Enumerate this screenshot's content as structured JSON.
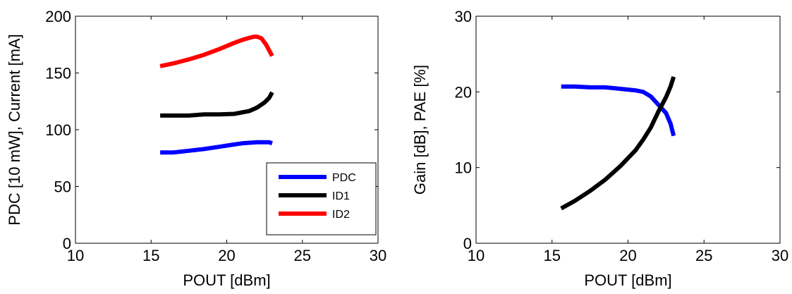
{
  "chart_data": [
    {
      "type": "line",
      "xlabel": "POUT [dBm]",
      "ylabel": "PDC [10 mW], Current [mA]",
      "xlim": [
        10,
        30
      ],
      "ylim": [
        0,
        200
      ],
      "xticks": [
        "10",
        "15",
        "20",
        "25",
        "30"
      ],
      "yticks": [
        "0",
        "50",
        "100",
        "150",
        "200"
      ],
      "grid": false,
      "legend": "bottom-right",
      "series": [
        {
          "name": "PDC",
          "color": "#0000ff",
          "x": [
            15.6,
            16.5,
            17.5,
            18.5,
            19.5,
            20.5,
            21,
            21.5,
            22,
            22.5,
            22.8,
            23
          ],
          "y": [
            80,
            80,
            81.5,
            83,
            85,
            87,
            88,
            88.5,
            89,
            89,
            89,
            88
          ]
        },
        {
          "name": "ID1",
          "color": "#000000",
          "x": [
            15.6,
            16.5,
            17.5,
            18.5,
            19.5,
            20.5,
            21.5,
            22,
            22.5,
            22.8,
            23
          ],
          "y": [
            112.5,
            112.5,
            112.5,
            113.5,
            113.5,
            114,
            116.5,
            119.5,
            124,
            128,
            133
          ]
        },
        {
          "name": "ID2",
          "color": "#ff0000",
          "x": [
            15.6,
            16.5,
            17.5,
            18.5,
            19.5,
            20.5,
            21,
            21.5,
            21.8,
            22,
            22.3,
            22.6,
            22.8,
            23
          ],
          "y": [
            156,
            158.5,
            162,
            166,
            171,
            176.5,
            179,
            181,
            182,
            182,
            180.5,
            175,
            170,
            165
          ]
        }
      ]
    },
    {
      "type": "line",
      "xlabel": "POUT [dBm]",
      "ylabel": "Gain [dB], PAE [%]",
      "xlim": [
        10,
        30
      ],
      "ylim": [
        0,
        30
      ],
      "xticks": [
        "10",
        "15",
        "20",
        "25",
        "30"
      ],
      "yticks": [
        "0",
        "10",
        "20",
        "30"
      ],
      "grid": false,
      "series": [
        {
          "color": "#0000ff",
          "x": [
            15.6,
            16.5,
            17.5,
            18.5,
            19.5,
            20.5,
            21,
            21.5,
            22,
            22.5,
            22.8,
            23
          ],
          "y": [
            20.7,
            20.7,
            20.6,
            20.6,
            20.4,
            20.2,
            20,
            19.4,
            18.3,
            17.2,
            15.8,
            14.2
          ]
        },
        {
          "color": "#000000",
          "x": [
            15.6,
            16.5,
            17.5,
            18.5,
            19.5,
            20.5,
            21,
            21.5,
            22,
            22.5,
            22.8,
            23
          ],
          "y": [
            4.6,
            5.6,
            6.9,
            8.4,
            10.2,
            12.3,
            13.7,
            15.3,
            17.4,
            19.3,
            20.7,
            22
          ]
        }
      ]
    }
  ]
}
